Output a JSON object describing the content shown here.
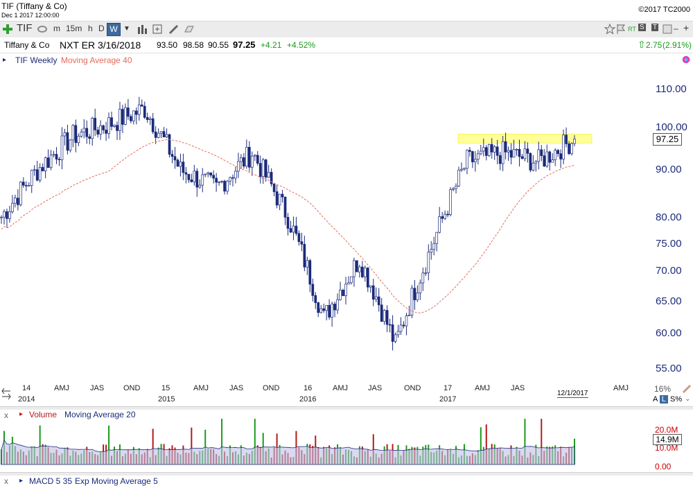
{
  "window": {
    "title": "TIF (Tiffany & Co)",
    "datetime": "Dec 1 2017 12:00:00",
    "copyright": "©2017 TC2000"
  },
  "toolbar": {
    "symbol": "TIF",
    "periods": [
      "m",
      "15m",
      "h",
      "D",
      "W"
    ],
    "active_period": "W",
    "right_labels": [
      "RT",
      "S",
      "T"
    ]
  },
  "quote": {
    "name": "Tiffany & Co",
    "next_earnings": "NXT ER 3/16/2018",
    "open": "93.50",
    "high": "98.58",
    "low": "90.55",
    "last": "97.25",
    "change": "+4.21",
    "change_pct": "+4.52%",
    "day_change": "2.75",
    "day_change_pct": "(2.91%)"
  },
  "colors": {
    "candle": "#1b2a7a",
    "ma": "#e36b5a",
    "up_volume": "#1a9a1a",
    "down_volume": "#b21a1a",
    "highlight": "#ffff99",
    "active_period": "#3d6aa0",
    "up_text": "#1a9a1a"
  },
  "legend": {
    "series": "TIF Weekly",
    "indicator": "Moving Average 40"
  },
  "x_axis": {
    "month_labels": [
      "14",
      "AMJ",
      "JAS",
      "OND",
      "15",
      "AMJ",
      "JAS",
      "OND",
      "16",
      "AMJ",
      "JAS",
      "OND",
      "17",
      "AMJ",
      "JAS",
      "AMJ"
    ],
    "year_labels": [
      "2014",
      "2015",
      "2016",
      "2017"
    ],
    "date_marker": "12/1/2017",
    "pct": "16%",
    "scale_a": "A",
    "scale_l": "L",
    "scale_s": "S%"
  },
  "y_axis": {
    "labels": [
      "110.00",
      "100.00",
      "90.00",
      "80.00",
      "75.00",
      "70.00",
      "65.00",
      "60.00",
      "55.00"
    ],
    "last_price": "97.25"
  },
  "volume": {
    "legend_title": "Volume",
    "legend_ma": "Moving Average 20",
    "labels": [
      "20.0M",
      "10.0M",
      "0.00"
    ],
    "current": "14.9M"
  },
  "macd": {
    "title": "MACD 5 35",
    "ma": "Exp Moving Average 5"
  },
  "chart_data": {
    "type": "candlestick",
    "title": "TIF Weekly",
    "y_scale": "log",
    "ylim": [
      52,
      114
    ],
    "x_range": [
      "2013-10",
      "2018-05"
    ],
    "weekly_close_approx": [
      {
        "date": "2013-Q4",
        "close": 80
      },
      {
        "date": "2014-Q1",
        "close": 90
      },
      {
        "date": "2014-Q2",
        "close": 98
      },
      {
        "date": "2014-Q3",
        "close": 101
      },
      {
        "date": "2014-Q4",
        "close": 105
      },
      {
        "date": "2015-Q1",
        "close": 90
      },
      {
        "date": "2015-Q2",
        "close": 86
      },
      {
        "date": "2015-Q3",
        "close": 94
      },
      {
        "date": "2015-Q4",
        "close": 80
      },
      {
        "date": "2016-Q1",
        "close": 62
      },
      {
        "date": "2016-Q2",
        "close": 72
      },
      {
        "date": "2016-Q3",
        "close": 58
      },
      {
        "date": "2016-Q4",
        "close": 74
      },
      {
        "date": "2017-Q1",
        "close": 92
      },
      {
        "date": "2017-Q2",
        "close": 94
      },
      {
        "date": "2017-Q3",
        "close": 92
      },
      {
        "date": "2017-Q4",
        "close": 97.25
      }
    ],
    "resistance_zone": [
      96.3,
      98.5
    ]
  }
}
